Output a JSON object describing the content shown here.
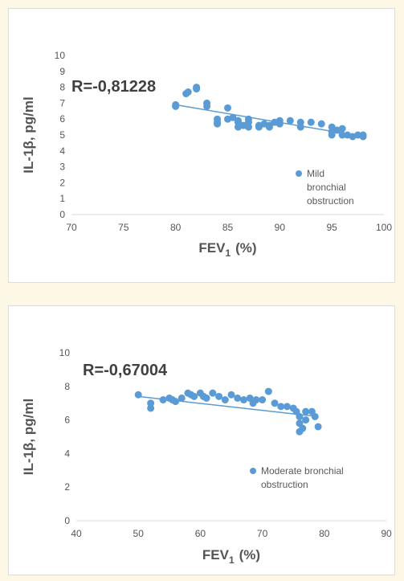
{
  "colors": {
    "point": "#5b9bd5",
    "trend": "#5b9bd5",
    "axis": "#d9d9d9",
    "text": "#595959"
  },
  "chart_data": [
    {
      "type": "scatter",
      "annotation": "R=-0,81228",
      "xlabel_main": "FEV",
      "xlabel_sub": "1",
      "xlabel_unit": "(%)",
      "ylabel": "IL-1β, pg/ml",
      "xlim": [
        70,
        100
      ],
      "ylim": [
        0,
        10
      ],
      "xticks": [
        "70",
        "75",
        "80",
        "85",
        "90",
        "95",
        "100"
      ],
      "yticks": [
        "0",
        "1",
        "2",
        "3",
        "4",
        "5",
        "6",
        "7",
        "8",
        "9",
        "10"
      ],
      "grid": false,
      "legend_position": "right",
      "trendline": {
        "x": [
          80,
          98
        ],
        "y": [
          6.9,
          4.9
        ]
      },
      "series": [
        {
          "name": "Mild bronchial obstruction",
          "points": [
            [
              80,
              6.9
            ],
            [
              80,
              6.8
            ],
            [
              81,
              7.6
            ],
            [
              81.2,
              7.7
            ],
            [
              82,
              7.9
            ],
            [
              82,
              8.0
            ],
            [
              83,
              7.0
            ],
            [
              83,
              6.8
            ],
            [
              84,
              5.8
            ],
            [
              84,
              6.0
            ],
            [
              84,
              5.7
            ],
            [
              85,
              6.7
            ],
            [
              85,
              6.0
            ],
            [
              85.5,
              6.1
            ],
            [
              86,
              5.5
            ],
            [
              86,
              5.8
            ],
            [
              86,
              5.9
            ],
            [
              86.5,
              5.6
            ],
            [
              87,
              5.5
            ],
            [
              87,
              5.8
            ],
            [
              87,
              6.0
            ],
            [
              88,
              5.5
            ],
            [
              88,
              5.6
            ],
            [
              88.5,
              5.7
            ],
            [
              89,
              5.5
            ],
            [
              89,
              5.6
            ],
            [
              89.5,
              5.8
            ],
            [
              90,
              5.9
            ],
            [
              90,
              5.7
            ],
            [
              91,
              5.9
            ],
            [
              92,
              5.5
            ],
            [
              92,
              5.8
            ],
            [
              93,
              5.8
            ],
            [
              94,
              5.7
            ],
            [
              95,
              5.5
            ],
            [
              95,
              5.2
            ],
            [
              95,
              5.0
            ],
            [
              95.5,
              5.3
            ],
            [
              96,
              5.0
            ],
            [
              96,
              5.4
            ],
            [
              96.5,
              5.0
            ],
            [
              97,
              4.9
            ],
            [
              97.5,
              5.0
            ],
            [
              98,
              4.9
            ],
            [
              98,
              5.0
            ]
          ]
        }
      ]
    },
    {
      "type": "scatter",
      "annotation": "R=-0,67004",
      "xlabel_main": "FEV",
      "xlabel_sub": "1",
      "xlabel_unit": "(%)",
      "ylabel": "IL-1β, pg/ml",
      "xlim": [
        40,
        90
      ],
      "ylim": [
        0,
        10
      ],
      "xticks": [
        "40",
        "50",
        "60",
        "70",
        "80",
        "90"
      ],
      "yticks": [
        "0",
        "2",
        "4",
        "6",
        "8",
        "10"
      ],
      "grid": false,
      "legend_position": "bottom-right",
      "trendline": {
        "x": [
          50,
          79
        ],
        "y": [
          7.4,
          6.2
        ]
      },
      "series": [
        {
          "name": "Moderate bronchial obstruction",
          "points": [
            [
              50,
              7.5
            ],
            [
              52,
              7.0
            ],
            [
              52,
              6.7
            ],
            [
              54,
              7.2
            ],
            [
              55,
              7.3
            ],
            [
              55.5,
              7.2
            ],
            [
              56,
              7.1
            ],
            [
              57,
              7.3
            ],
            [
              58,
              7.6
            ],
            [
              58.5,
              7.5
            ],
            [
              59,
              7.4
            ],
            [
              60,
              7.6
            ],
            [
              60.5,
              7.4
            ],
            [
              61,
              7.3
            ],
            [
              62,
              7.6
            ],
            [
              63,
              7.4
            ],
            [
              64,
              7.2
            ],
            [
              65,
              7.5
            ],
            [
              66,
              7.3
            ],
            [
              67,
              7.2
            ],
            [
              68,
              7.3
            ],
            [
              68.5,
              7.0
            ],
            [
              69,
              7.2
            ],
            [
              70,
              7.2
            ],
            [
              71,
              7.7
            ],
            [
              72,
              7.0
            ],
            [
              73,
              6.8
            ],
            [
              74,
              6.8
            ],
            [
              75,
              6.7
            ],
            [
              75.5,
              6.5
            ],
            [
              76,
              6.2
            ],
            [
              76,
              5.8
            ],
            [
              76,
              5.3
            ],
            [
              76.5,
              5.5
            ],
            [
              77,
              6.0
            ],
            [
              77,
              6.5
            ],
            [
              78,
              6.5
            ],
            [
              78.5,
              6.2
            ],
            [
              79,
              5.6
            ]
          ]
        }
      ]
    }
  ]
}
